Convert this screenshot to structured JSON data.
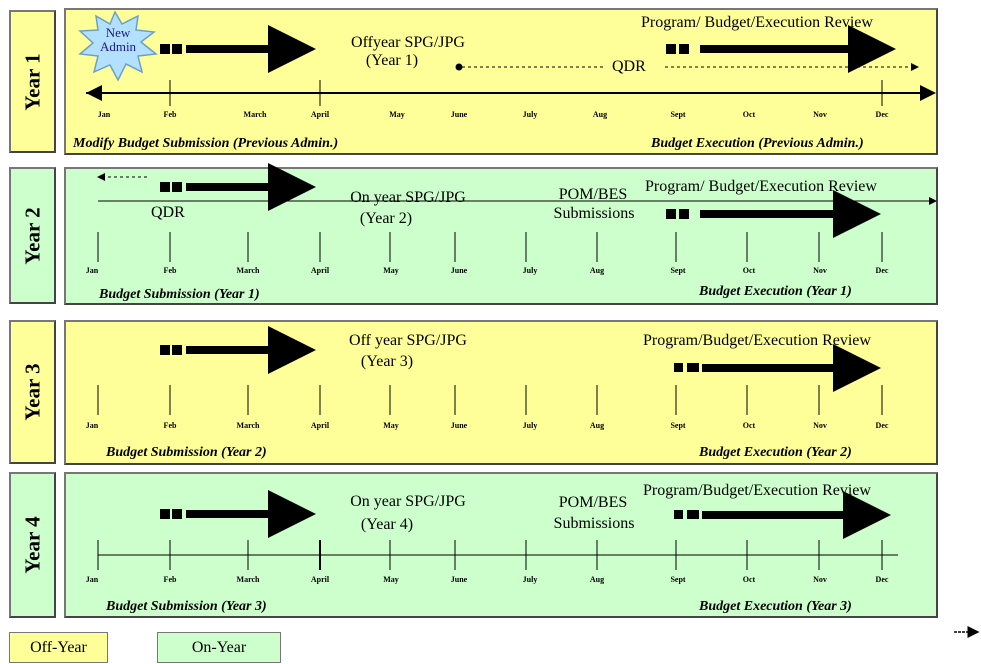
{
  "months": [
    "Jan",
    "Feb",
    "March",
    "April",
    "May",
    "June",
    "July",
    "Aug",
    "Sept",
    "Oct",
    "Nov",
    "Dec"
  ],
  "years": [
    {
      "label": "Year 1",
      "phase": "off",
      "title": "Program/ Budget/Execution Review",
      "center_line1": "Offyear SPG/JPG",
      "center_line2": "(Year 1)",
      "qdr": "QDR",
      "badge_line1": "New",
      "badge_line2": "Admin",
      "bottom_left": "Modify Budget Submission (Previous Admin.)",
      "bottom_right": "Budget Execution (Previous Admin.)"
    },
    {
      "label": "Year 2",
      "phase": "on",
      "title": "Program/ Budget/Execution Review",
      "center_line1": "On year SPG/JPG",
      "center_line2": "(Year 2)",
      "qdr": "QDR",
      "pom_line1": "POM/BES",
      "pom_line2": "Submissions",
      "bottom_left": "Budget Submission (Year 1)",
      "bottom_right": "Budget Execution (Year 1)"
    },
    {
      "label": "Year 3",
      "phase": "off",
      "title": "Program/Budget/Execution Review",
      "center_line1": "Off year SPG/JPG",
      "center_line2": "(Year 3)",
      "bottom_left": "Budget Submission (Year 2)",
      "bottom_right": "Budget Execution (Year 2)"
    },
    {
      "label": "Year 4",
      "phase": "on",
      "title": "Program/Budget/Execution Review",
      "center_line1": "On year SPG/JPG",
      "center_line2": "(Year 4)",
      "pom_line1": "POM/BES",
      "pom_line2": "Submissions",
      "bottom_left": "Budget Submission (Year 3)",
      "bottom_right": "Budget Execution (Year 3)"
    }
  ],
  "legend": {
    "off_label": "Off-Year",
    "on_label": "On-Year"
  },
  "colors": {
    "off_year": "#ffff99",
    "on_year": "#ccffcc",
    "badge": "#b3e0ff"
  }
}
